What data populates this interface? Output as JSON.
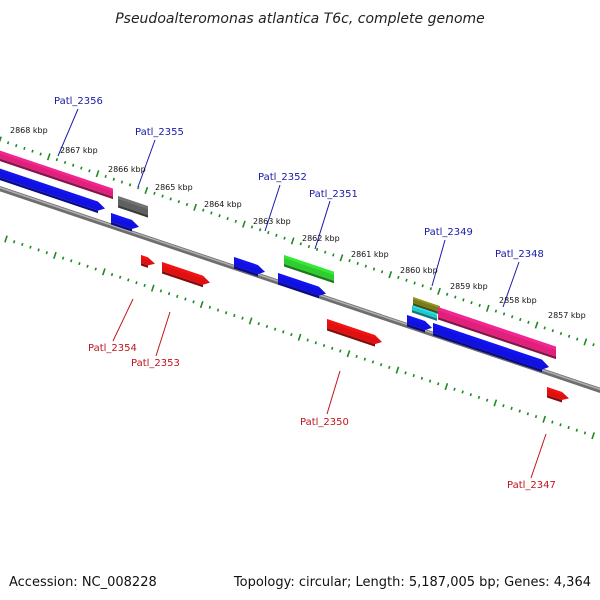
{
  "title": "Pseudoalteromonas atlantica T6c, complete genome",
  "footer": {
    "accession": "Accession: NC_008228",
    "summary": "Topology: circular; Length: 5,187,005 bp; Genes: 4,364"
  },
  "colors": {
    "forward_label": "#1a1aa8",
    "reverse_label": "#c0141e",
    "tick": "#1f8a1f",
    "backbone": "#808080"
  },
  "scale_labels": [
    "2868 kbp",
    "2867 kbp",
    "2866 kbp",
    "2865 kbp",
    "2864 kbp",
    "2863 kbp",
    "2862 kbp",
    "2861 kbp",
    "2860 kbp",
    "2859 kbp",
    "2858 kbp",
    "2857 kbp"
  ],
  "gene_labels": [
    {
      "name": "Patl_2356",
      "strand": "forward"
    },
    {
      "name": "Patl_2355",
      "strand": "forward"
    },
    {
      "name": "Patl_2352",
      "strand": "forward"
    },
    {
      "name": "Patl_2351",
      "strand": "forward"
    },
    {
      "name": "Patl_2349",
      "strand": "forward"
    },
    {
      "name": "Patl_2348",
      "strand": "forward"
    },
    {
      "name": "Patl_2354",
      "strand": "reverse"
    },
    {
      "name": "Patl_2353",
      "strand": "reverse"
    },
    {
      "name": "Patl_2350",
      "strand": "reverse"
    },
    {
      "name": "Patl_2347",
      "strand": "reverse"
    }
  ],
  "feature_colors": {
    "cds_forward": "#1010e0",
    "cds_reverse": "#e01010",
    "gene": "#e0207a",
    "other_gray": "#606060",
    "other_green": "#2ecc2e",
    "other_olive": "#7a7a1a",
    "other_cyan": "#20c8d0"
  }
}
